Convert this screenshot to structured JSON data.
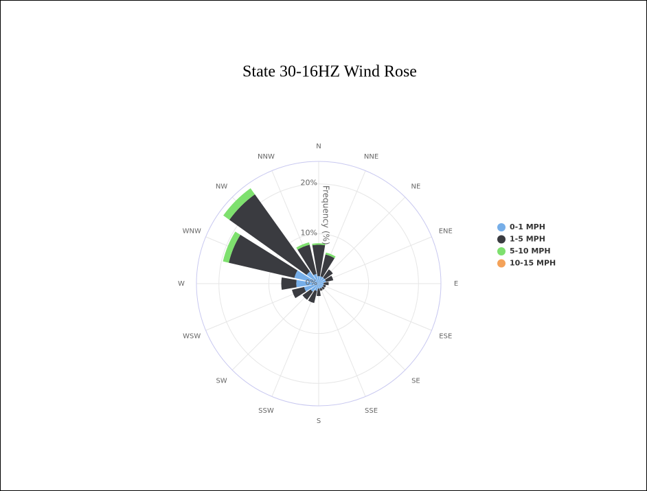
{
  "chart_data": {
    "type": "windrose",
    "title": "State 30-16HZ Wind Rose",
    "r_axis_title": "Frequency (%)",
    "categories": [
      "N",
      "NNE",
      "NE",
      "ENE",
      "E",
      "ESE",
      "SE",
      "SSE",
      "S",
      "SSW",
      "SW",
      "WSW",
      "W",
      "WNW",
      "NW",
      "NNW"
    ],
    "series": [
      {
        "name": "0-1 MPH",
        "color": "#76aee8",
        "values": [
          1.5,
          1.5,
          1.5,
          1.5,
          1,
          1,
          1,
          1,
          1,
          1.5,
          2,
          3,
          4.5,
          5,
          3,
          2
        ]
      },
      {
        "name": "1-5 MPH",
        "color": "#3a3b40",
        "values": [
          6.3,
          4.5,
          2,
          1.5,
          1,
          0.5,
          0.5,
          0.5,
          1.5,
          2.5,
          2,
          2.5,
          3,
          13.5,
          19,
          6
        ]
      },
      {
        "name": "5-10 MPH",
        "color": "#7ee06e",
        "values": [
          0.3,
          0.4,
          0,
          0,
          0,
          0,
          0,
          0,
          0,
          0,
          0,
          0,
          0,
          1.2,
          1.5,
          0.5
        ]
      },
      {
        "name": "10-15 MPH",
        "color": "#f4a259",
        "values": [
          0,
          0,
          0,
          0,
          0,
          0,
          0,
          0,
          0,
          0,
          0,
          0,
          0,
          0,
          0,
          0
        ]
      }
    ],
    "rlim": [
      0,
      24.5
    ],
    "rticks": [
      {
        "value": 0,
        "label": "0%"
      },
      {
        "value": 10,
        "label": "10%"
      },
      {
        "value": 20,
        "label": "20%"
      }
    ],
    "legend": "right",
    "grid": true
  }
}
